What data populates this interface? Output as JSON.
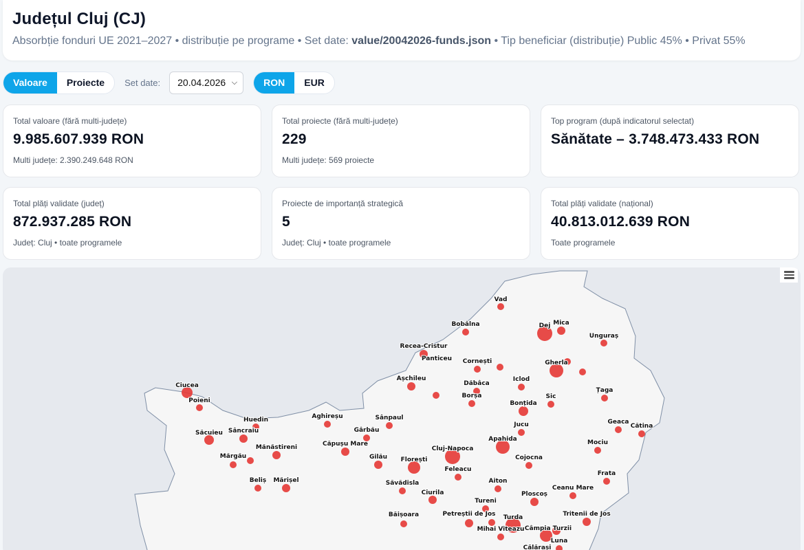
{
  "header": {
    "title": "Județul Cluj (CJ)",
    "sub_prefix": "Absorbție fonduri UE 2021–2027 • distribuție pe programe • Set date: ",
    "dataset_file": "value/20042026-funds.json",
    "sub_suffix": " • Tip beneficiar (distribuție) Public 45% • Privat 55%"
  },
  "controls": {
    "metric_options": [
      "Valoare",
      "Proiecte"
    ],
    "metric_selected": "Valoare",
    "set_label": "Set date:",
    "date_value": "20.04.2026",
    "currency_options": [
      "RON",
      "EUR"
    ],
    "currency_selected": "RON"
  },
  "cards": [
    {
      "label": "Total valoare (fără multi-județe)",
      "value": "9.985.607.939 RON",
      "note": "Multi județe: 2.390.249.648 RON"
    },
    {
      "label": "Total proiecte (fără multi-județe)",
      "value": "229",
      "note": "Multi județe: 569 proiecte"
    },
    {
      "label": "Top program (după indicatorul selectat)",
      "value": "Sănătate – 3.748.473.433 RON",
      "note": ""
    },
    {
      "label": "Total plăți validate (județ)",
      "value": "872.937.285 RON",
      "note": "Județ: Cluj • toate programele"
    },
    {
      "label": "Proiecte de importanță strategică",
      "value": "5",
      "note": "Județ: Cluj • toate programele"
    },
    {
      "label": "Total plăți validate (național)",
      "value": "40.813.012.639 RON",
      "note": "Toate programele"
    }
  ],
  "map": {
    "menu_icon": "hamburger-menu-icon",
    "marker_color": "#e53935",
    "places": [
      "Vad",
      "Bobâlna",
      "Dej",
      "Mica",
      "Unguraș",
      "Recea-Cristur",
      "Panticeu",
      "Cornești",
      "Gherla",
      "Ciucea",
      "Poieni",
      "Așchileu",
      "Iclod",
      "Dăbâca",
      "Borșa",
      "Sic",
      "Țaga",
      "Bonțida",
      "Aghireșu",
      "Sânpaul",
      "Huedin",
      "Săcuieu",
      "Sâncraiu",
      "Gârbău",
      "Jucu",
      "Geaca",
      "Cătina",
      "Căpușu Mare",
      "Cluj-Napoca",
      "Apahida",
      "Mociu",
      "Mănăstireni",
      "Mărgău",
      "Gilău",
      "Florești",
      "Cojocna",
      "Feleacu",
      "Frata",
      "Beliș",
      "Mărișel",
      "Săvădisla",
      "Aiton",
      "Ceanu Mare",
      "Ciurila",
      "Ploscoș",
      "Tureni",
      "Băișoara",
      "Petreștii de Jos",
      "Turda",
      "Tritenii de Jos",
      "Mihai Viteazu",
      "Câmpia Turzii",
      "Luna",
      "Călărași"
    ]
  }
}
